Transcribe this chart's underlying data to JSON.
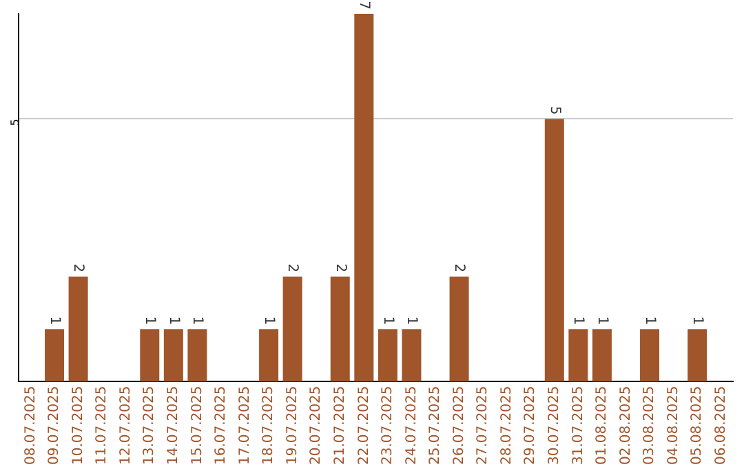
{
  "chart_data": {
    "type": "bar",
    "categories": [
      "08.07.2025",
      "09.07.2025",
      "10.07.2025",
      "11.07.2025",
      "12.07.2025",
      "13.07.2025",
      "14.07.2025",
      "15.07.2025",
      "16.07.2025",
      "17.07.2025",
      "18.07.2025",
      "19.07.2025",
      "20.07.2025",
      "21.07.2025",
      "22.07.2025",
      "23.07.2025",
      "24.07.2025",
      "25.07.2025",
      "26.07.2025",
      "27.07.2025",
      "28.07.2025",
      "29.07.2025",
      "30.07.2025",
      "31.07.2025",
      "01.08.2025",
      "02.08.2025",
      "03.08.2025",
      "04.08.2025",
      "05.08.2025",
      "06.08.2025"
    ],
    "values": [
      0,
      1,
      2,
      0,
      0,
      1,
      1,
      1,
      0,
      0,
      1,
      2,
      0,
      2,
      7,
      1,
      1,
      0,
      2,
      0,
      0,
      0,
      5,
      1,
      1,
      0,
      1,
      0,
      1,
      0
    ],
    "value_labels": [
      null,
      "1",
      "2",
      null,
      null,
      "1",
      "1",
      "1",
      null,
      null,
      "1",
      "2",
      null,
      "2",
      "7",
      "1",
      "1",
      null,
      "2",
      null,
      null,
      null,
      "5",
      "1",
      "1",
      null,
      "1",
      null,
      "1",
      null
    ],
    "color": "#a0552b",
    "ylim": [
      0,
      7
    ],
    "yticks": [
      5
    ],
    "grid": "y",
    "legend": false
  }
}
